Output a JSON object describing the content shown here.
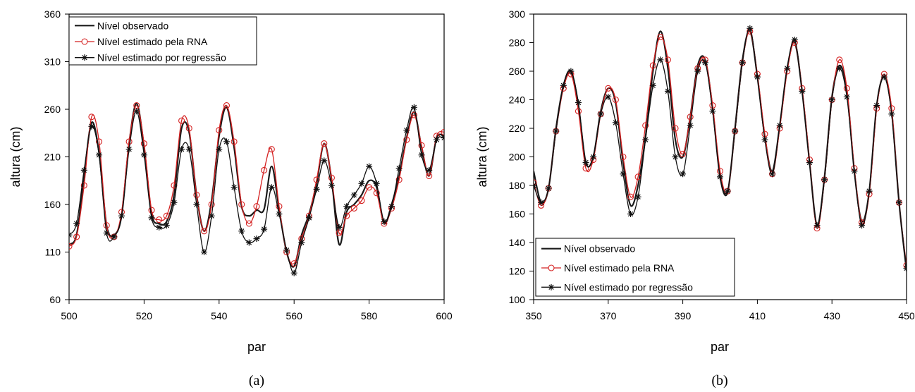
{
  "colors": {
    "observed": "#1a1a1a",
    "rna": "#d42020",
    "regression": "#111111",
    "axis": "#000000"
  },
  "chart_data": [
    {
      "type": "line",
      "panel": "a",
      "caption": "(a)",
      "xlabel": "par",
      "ylabel": "altura (cm)",
      "xlim": [
        500,
        600
      ],
      "ylim": [
        60,
        360
      ],
      "xticks": [
        "500",
        "520",
        "540",
        "560",
        "580",
        "600"
      ],
      "yticks": [
        "60",
        "110",
        "160",
        "210",
        "260",
        "310",
        "360"
      ],
      "grid": false,
      "legend_position": "top-left",
      "series": [
        {
          "name": "Nível observado",
          "x": [
            500,
            502,
            504,
            506,
            508,
            510,
            512,
            514,
            516,
            518,
            520,
            522,
            524,
            526,
            528,
            530,
            532,
            534,
            536,
            538,
            540,
            542,
            544,
            546,
            548,
            550,
            552,
            554,
            556,
            558,
            560,
            562,
            564,
            566,
            568,
            570,
            572,
            574,
            576,
            578,
            580,
            582,
            584,
            586,
            588,
            590,
            592,
            594,
            596,
            598,
            600
          ],
          "y": [
            118,
            128,
            190,
            246,
            214,
            138,
            128,
            148,
            224,
            266,
            220,
            150,
            140,
            142,
            170,
            240,
            236,
            170,
            132,
            164,
            232,
            262,
            220,
            158,
            148,
            154,
            155,
            200,
            155,
            110,
            95,
            128,
            150,
            182,
            224,
            186,
            118,
            152,
            160,
            170,
            185,
            178,
            140,
            160,
            190,
            230,
            257,
            220,
            190,
            230,
            232
          ]
        },
        {
          "name": "Nível estimado pela RNA",
          "x": [
            500,
            502,
            504,
            506,
            508,
            510,
            512,
            514,
            516,
            518,
            520,
            522,
            524,
            526,
            528,
            530,
            532,
            534,
            536,
            538,
            540,
            542,
            544,
            546,
            548,
            550,
            552,
            554,
            556,
            558,
            560,
            562,
            564,
            566,
            568,
            570,
            572,
            574,
            576,
            578,
            580,
            582,
            584,
            586,
            588,
            590,
            592,
            594,
            596,
            598,
            600
          ],
          "y": [
            116,
            126,
            180,
            252,
            226,
            138,
            126,
            152,
            226,
            264,
            224,
            154,
            144,
            148,
            180,
            248,
            240,
            170,
            132,
            160,
            238,
            264,
            226,
            160,
            140,
            158,
            196,
            218,
            158,
            110,
            98,
            124,
            148,
            186,
            224,
            188,
            130,
            148,
            156,
            164,
            178,
            172,
            140,
            156,
            186,
            228,
            254,
            222,
            190,
            232,
            236
          ]
        },
        {
          "name": "Nível estimado por regressão",
          "x": [
            500,
            502,
            504,
            506,
            508,
            510,
            512,
            514,
            516,
            518,
            520,
            522,
            524,
            526,
            528,
            530,
            532,
            534,
            536,
            538,
            540,
            542,
            544,
            546,
            548,
            550,
            552,
            554,
            556,
            558,
            560,
            562,
            564,
            566,
            568,
            570,
            572,
            574,
            576,
            578,
            580,
            582,
            584,
            586,
            588,
            590,
            592,
            594,
            596,
            598,
            600
          ],
          "y": [
            128,
            140,
            196,
            242,
            212,
            130,
            126,
            148,
            218,
            258,
            212,
            146,
            136,
            138,
            162,
            218,
            218,
            160,
            110,
            148,
            218,
            226,
            178,
            132,
            120,
            124,
            134,
            178,
            150,
            112,
            88,
            120,
            146,
            176,
            206,
            180,
            136,
            158,
            170,
            182,
            200,
            182,
            142,
            158,
            198,
            238,
            262,
            212,
            196,
            228,
            230
          ]
        }
      ]
    },
    {
      "type": "line",
      "panel": "b",
      "caption": "(b)",
      "xlabel": "par",
      "ylabel": "altura (cm)",
      "xlim": [
        350,
        450
      ],
      "ylim": [
        100,
        300
      ],
      "xticks": [
        "350",
        "370",
        "390",
        "410",
        "430",
        "450"
      ],
      "yticks": [
        "100",
        "120",
        "140",
        "160",
        "180",
        "200",
        "220",
        "240",
        "260",
        "280",
        "300"
      ],
      "grid": false,
      "legend_position": "bottom-left",
      "series": [
        {
          "name": "Nível observado",
          "x": [
            350,
            352,
            354,
            356,
            358,
            360,
            362,
            364,
            366,
            368,
            370,
            372,
            374,
            376,
            378,
            380,
            382,
            384,
            386,
            388,
            390,
            392,
            394,
            396,
            398,
            400,
            402,
            404,
            406,
            408,
            410,
            412,
            414,
            416,
            418,
            420,
            422,
            424,
            426,
            428,
            430,
            432,
            434,
            436,
            438,
            440,
            442,
            444,
            446,
            448,
            450
          ],
          "y": [
            190,
            168,
            178,
            220,
            250,
            260,
            236,
            196,
            200,
            232,
            248,
            238,
            196,
            166,
            180,
            214,
            260,
            288,
            262,
            212,
            200,
            228,
            264,
            268,
            234,
            186,
            175,
            220,
            268,
            288,
            256,
            214,
            190,
            222,
            262,
            280,
            246,
            196,
            152,
            186,
            242,
            264,
            246,
            190,
            155,
            176,
            236,
            256,
            232,
            168,
            120
          ]
        },
        {
          "name": "Nível estimado pela RNA",
          "x": [
            350,
            352,
            354,
            356,
            358,
            360,
            362,
            364,
            366,
            368,
            370,
            372,
            374,
            376,
            378,
            380,
            382,
            384,
            386,
            388,
            390,
            392,
            394,
            396,
            398,
            400,
            402,
            404,
            406,
            408,
            410,
            412,
            414,
            416,
            418,
            420,
            422,
            424,
            426,
            428,
            430,
            432,
            434,
            436,
            438,
            440,
            442,
            444,
            446,
            448,
            450
          ],
          "y": [
            182,
            166,
            178,
            218,
            248,
            258,
            232,
            192,
            198,
            230,
            248,
            240,
            200,
            172,
            186,
            222,
            264,
            284,
            268,
            220,
            202,
            228,
            262,
            268,
            236,
            190,
            176,
            218,
            266,
            288,
            258,
            216,
            188,
            220,
            260,
            280,
            248,
            198,
            150,
            184,
            240,
            268,
            248,
            192,
            154,
            174,
            234,
            258,
            234,
            168,
            124
          ]
        },
        {
          "name": "Nível estimado por regressão",
          "x": [
            350,
            352,
            354,
            356,
            358,
            360,
            362,
            364,
            366,
            368,
            370,
            372,
            374,
            376,
            378,
            380,
            382,
            384,
            386,
            388,
            390,
            392,
            394,
            396,
            398,
            400,
            402,
            404,
            406,
            408,
            410,
            412,
            414,
            416,
            418,
            420,
            422,
            424,
            426,
            428,
            430,
            432,
            434,
            436,
            438,
            440,
            442,
            444,
            446,
            448,
            450
          ],
          "y": [
            180,
            168,
            178,
            218,
            250,
            260,
            238,
            196,
            200,
            230,
            242,
            224,
            188,
            160,
            172,
            212,
            250,
            268,
            246,
            200,
            188,
            222,
            260,
            266,
            232,
            186,
            176,
            218,
            266,
            290,
            256,
            212,
            188,
            222,
            262,
            282,
            246,
            196,
            152,
            184,
            240,
            262,
            242,
            190,
            152,
            176,
            236,
            256,
            230,
            168,
            122
          ]
        }
      ]
    }
  ]
}
